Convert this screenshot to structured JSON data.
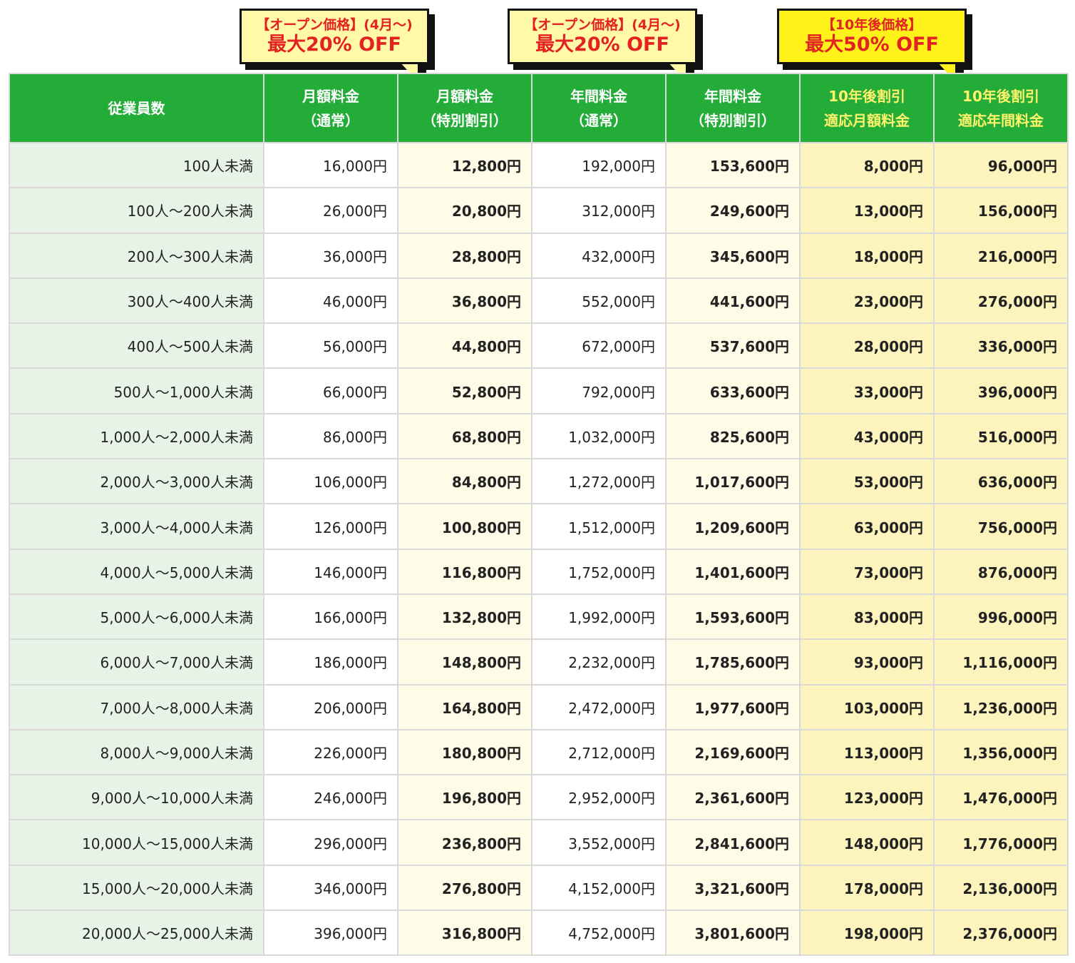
{
  "callouts": [
    {
      "id": "monthly-open",
      "line1": "【オープン価格】(4月～)",
      "line2": "最大20% OFF"
    },
    {
      "id": "annual-open",
      "line1": "【オープン価格】(4月～)",
      "line2": "最大20% OFF"
    },
    {
      "id": "ten-year",
      "line1": "【10年後価格】",
      "line2": "最大50% OFF"
    }
  ],
  "headers": {
    "employees": "従業員数",
    "monthly_normal": {
      "l1": "月額料金",
      "l2": "（通常）"
    },
    "monthly_special": {
      "l1": "月額料金",
      "l2": "（特別割引）"
    },
    "annual_normal": {
      "l1": "年間料金",
      "l2": "（通常）"
    },
    "annual_special": {
      "l1": "年間料金",
      "l2": "（特別割引）"
    },
    "ten_monthly": {
      "l1": "10年後割引",
      "l2": "適応月額料金"
    },
    "ten_annual": {
      "l1": "10年後割引",
      "l2": "適応年間料金"
    }
  },
  "rows": [
    {
      "employees": "100人未満",
      "monthly_normal": "16,000円",
      "monthly_special": "12,800円",
      "annual_normal": "192,000円",
      "annual_special": "153,600円",
      "ten_monthly": "8,000円",
      "ten_annual": "96,000円"
    },
    {
      "employees": "100人～200人未満",
      "monthly_normal": "26,000円",
      "monthly_special": "20,800円",
      "annual_normal": "312,000円",
      "annual_special": "249,600円",
      "ten_monthly": "13,000円",
      "ten_annual": "156,000円"
    },
    {
      "employees": "200人～300人未満",
      "monthly_normal": "36,000円",
      "monthly_special": "28,800円",
      "annual_normal": "432,000円",
      "annual_special": "345,600円",
      "ten_monthly": "18,000円",
      "ten_annual": "216,000円"
    },
    {
      "employees": "300人～400人未満",
      "monthly_normal": "46,000円",
      "monthly_special": "36,800円",
      "annual_normal": "552,000円",
      "annual_special": "441,600円",
      "ten_monthly": "23,000円",
      "ten_annual": "276,000円"
    },
    {
      "employees": "400人～500人未満",
      "monthly_normal": "56,000円",
      "monthly_special": "44,800円",
      "annual_normal": "672,000円",
      "annual_special": "537,600円",
      "ten_monthly": "28,000円",
      "ten_annual": "336,000円"
    },
    {
      "employees": "500人～1,000人未満",
      "monthly_normal": "66,000円",
      "monthly_special": "52,800円",
      "annual_normal": "792,000円",
      "annual_special": "633,600円",
      "ten_monthly": "33,000円",
      "ten_annual": "396,000円"
    },
    {
      "employees": "1,000人～2,000人未満",
      "monthly_normal": "86,000円",
      "monthly_special": "68,800円",
      "annual_normal": "1,032,000円",
      "annual_special": "825,600円",
      "ten_monthly": "43,000円",
      "ten_annual": "516,000円"
    },
    {
      "employees": "2,000人～3,000人未満",
      "monthly_normal": "106,000円",
      "monthly_special": "84,800円",
      "annual_normal": "1,272,000円",
      "annual_special": "1,017,600円",
      "ten_monthly": "53,000円",
      "ten_annual": "636,000円"
    },
    {
      "employees": "3,000人～4,000人未満",
      "monthly_normal": "126,000円",
      "monthly_special": "100,800円",
      "annual_normal": "1,512,000円",
      "annual_special": "1,209,600円",
      "ten_monthly": "63,000円",
      "ten_annual": "756,000円"
    },
    {
      "employees": "4,000人～5,000人未満",
      "monthly_normal": "146,000円",
      "monthly_special": "116,800円",
      "annual_normal": "1,752,000円",
      "annual_special": "1,401,600円",
      "ten_monthly": "73,000円",
      "ten_annual": "876,000円"
    },
    {
      "employees": "5,000人～6,000人未満",
      "monthly_normal": "166,000円",
      "monthly_special": "132,800円",
      "annual_normal": "1,992,000円",
      "annual_special": "1,593,600円",
      "ten_monthly": "83,000円",
      "ten_annual": "996,000円"
    },
    {
      "employees": "6,000人～7,000人未満",
      "monthly_normal": "186,000円",
      "monthly_special": "148,800円",
      "annual_normal": "2,232,000円",
      "annual_special": "1,785,600円",
      "ten_monthly": "93,000円",
      "ten_annual": "1,116,000円"
    },
    {
      "employees": "7,000人～8,000人未満",
      "monthly_normal": "206,000円",
      "monthly_special": "164,800円",
      "annual_normal": "2,472,000円",
      "annual_special": "1,977,600円",
      "ten_monthly": "103,000円",
      "ten_annual": "1,236,000円"
    },
    {
      "employees": "8,000人～9,000人未満",
      "monthly_normal": "226,000円",
      "monthly_special": "180,800円",
      "annual_normal": "2,712,000円",
      "annual_special": "2,169,600円",
      "ten_monthly": "113,000円",
      "ten_annual": "1,356,000円"
    },
    {
      "employees": "9,000人～10,000人未満",
      "monthly_normal": "246,000円",
      "monthly_special": "196,800円",
      "annual_normal": "2,952,000円",
      "annual_special": "2,361,600円",
      "ten_monthly": "123,000円",
      "ten_annual": "1,476,000円"
    },
    {
      "employees": "10,000人～15,000人未満",
      "monthly_normal": "296,000円",
      "monthly_special": "236,800円",
      "annual_normal": "3,552,000円",
      "annual_special": "2,841,600円",
      "ten_monthly": "148,000円",
      "ten_annual": "1,776,000円"
    },
    {
      "employees": "15,000人～20,000人未満",
      "monthly_normal": "346,000円",
      "monthly_special": "276,800円",
      "annual_normal": "4,152,000円",
      "annual_special": "3,321,600円",
      "ten_monthly": "178,000円",
      "ten_annual": "2,136,000円"
    },
    {
      "employees": "20,000人～25,000人未満",
      "monthly_normal": "396,000円",
      "monthly_special": "316,800円",
      "annual_normal": "4,752,000円",
      "annual_special": "3,801,600円",
      "ten_monthly": "198,000円",
      "ten_annual": "2,376,000円"
    }
  ]
}
